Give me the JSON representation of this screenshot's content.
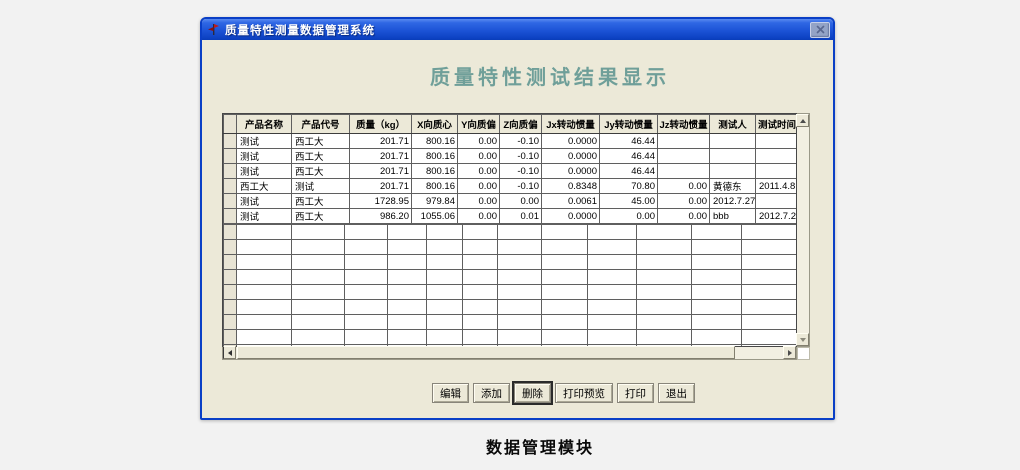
{
  "page": {
    "caption": "数据管理模块"
  },
  "window": {
    "title": "质量特性测量数据管理系统",
    "heading": "质量特性测试结果显示"
  },
  "icons": {
    "app_icon": "red-flag-icon",
    "close": "close-x-icon",
    "scroll_up": "triangle-up",
    "scroll_down": "triangle-down",
    "scroll_left": "triangle-left",
    "scroll_right": "triangle-right"
  },
  "table": {
    "columns": [
      "产品名称",
      "产品代号",
      "质量（kg）",
      "X向质心",
      "Y向质偏",
      "Z向质偏",
      "Jx转动惯量",
      "Jy转动惯量",
      "Jz转动惯量",
      "测试人",
      "测试时间"
    ],
    "rows": [
      [
        "测试",
        "西工大",
        "201.71",
        "800.16",
        "0.00",
        "-0.10",
        "0.0000",
        "46.44",
        "",
        "",
        ""
      ],
      [
        "测试",
        "西工大",
        "201.71",
        "800.16",
        "0.00",
        "-0.10",
        "0.0000",
        "46.44",
        "",
        "",
        ""
      ],
      [
        "测试",
        "西工大",
        "201.71",
        "800.16",
        "0.00",
        "-0.10",
        "0.0000",
        "46.44",
        "",
        "",
        ""
      ],
      [
        "西工大",
        "测试",
        "201.71",
        "800.16",
        "0.00",
        "-0.10",
        "0.8348",
        "70.80",
        "0.00",
        "黄德东",
        "2011.4.8"
      ],
      [
        "测试",
        "西工大",
        "1728.95",
        "979.84",
        "0.00",
        "0.00",
        "0.0061",
        "45.00",
        "0.00",
        "2012.7.27",
        ""
      ],
      [
        "测试",
        "西工大",
        "986.20",
        "1055.06",
        "0.00",
        "0.01",
        "0.0000",
        "0.00",
        "0.00",
        "bbb",
        "2012.7.2"
      ]
    ]
  },
  "buttons": [
    {
      "label": "编辑",
      "name": "edit-button",
      "focused": false
    },
    {
      "label": "添加",
      "name": "add-button",
      "focused": false
    },
    {
      "label": "删除",
      "name": "delete-button",
      "focused": true
    },
    {
      "label": "打印预览",
      "name": "print-preview-button",
      "focused": false
    },
    {
      "label": "打印",
      "name": "print-button",
      "focused": false
    },
    {
      "label": "退出",
      "name": "exit-button",
      "focused": false
    }
  ],
  "colors": {
    "titlebar_blue": "#1c53d6",
    "window_border_blue": "#0a3fc6",
    "client_beige": "#ece9d8",
    "heading_teal": "#6f9f99"
  }
}
